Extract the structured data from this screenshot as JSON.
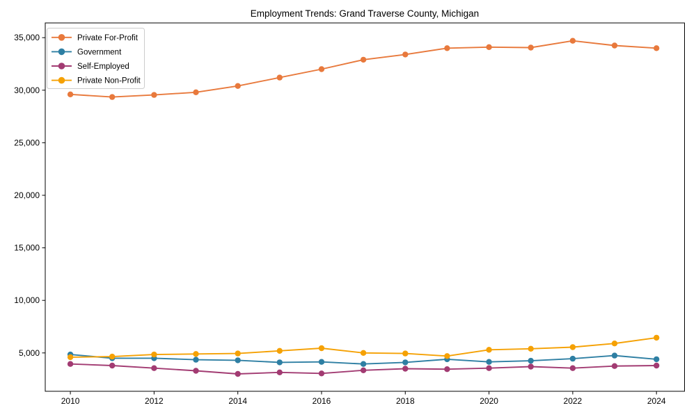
{
  "chart_data": {
    "type": "line",
    "title": "Employment Trends: Grand Traverse County, Michigan",
    "xlabel": "",
    "ylabel": "",
    "x": [
      2010,
      2011,
      2012,
      2013,
      2014,
      2015,
      2016,
      2017,
      2018,
      2019,
      2020,
      2021,
      2022,
      2023,
      2024
    ],
    "xticks": [
      2010,
      2012,
      2014,
      2016,
      2018,
      2020,
      2022,
      2024
    ],
    "yticks": [
      5000,
      10000,
      15000,
      20000,
      25000,
      30000,
      35000
    ],
    "xlim": [
      2009.4,
      2024.67
    ],
    "ylim": [
      1350,
      36400
    ],
    "grid": false,
    "legend_position": "upper left",
    "background_color": "#ffffff",
    "spine_color": "#000000",
    "legend_border_color": "#cccccc",
    "series": [
      {
        "name": "Private For-Profit",
        "color": "#E8793C",
        "marker": "circle",
        "values": [
          29600,
          29350,
          29550,
          29800,
          30400,
          31200,
          32000,
          32900,
          33400,
          34000,
          34100,
          34050,
          34700,
          34250,
          34000
        ]
      },
      {
        "name": "Government",
        "color": "#2E7FA3",
        "marker": "circle",
        "values": [
          4850,
          4500,
          4500,
          4350,
          4300,
          4100,
          4150,
          3950,
          4100,
          4400,
          4150,
          4250,
          4450,
          4750,
          4400
        ]
      },
      {
        "name": "Self-Employed",
        "color": "#A23B72",
        "marker": "circle",
        "values": [
          3950,
          3800,
          3550,
          3300,
          3000,
          3150,
          3050,
          3350,
          3500,
          3450,
          3550,
          3700,
          3550,
          3750,
          3800
        ]
      },
      {
        "name": "Private Non-Profit",
        "color": "#F5A104",
        "marker": "circle",
        "values": [
          4600,
          4650,
          4850,
          4900,
          4950,
          5200,
          5450,
          5000,
          4950,
          4700,
          5300,
          5400,
          5550,
          5900,
          6450
        ]
      }
    ]
  }
}
